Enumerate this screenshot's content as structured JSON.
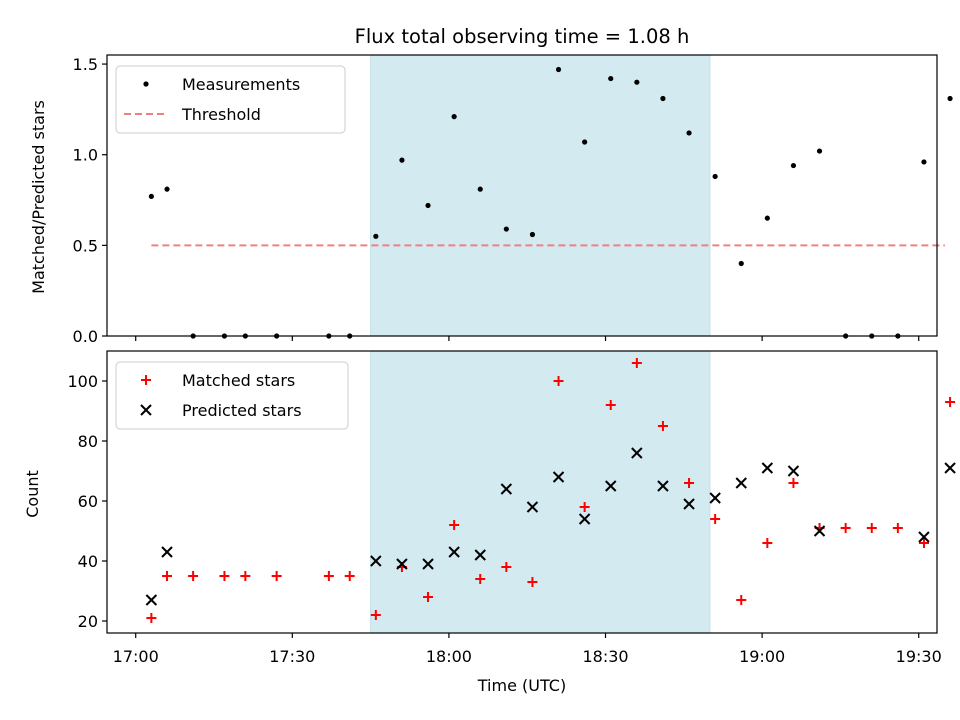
{
  "chart_data": {
    "title": "Flux total observing time = 1.08 h",
    "xlabel": "Time (UTC)",
    "x_ticks": [
      "17:00",
      "17:30",
      "18:00",
      "18:30",
      "19:00",
      "19:30"
    ],
    "x_tick_minutes": [
      0,
      30,
      60,
      90,
      120,
      150
    ],
    "x_range_minutes": [
      -5.5,
      153.5
    ],
    "highlight_span": {
      "start": "17:45",
      "end": "18:50",
      "color": "#d3eaf0"
    },
    "colors": {
      "measurement": "#000000",
      "threshold": "#f08080",
      "matched": "#ff0000",
      "predicted": "#000000"
    },
    "panels": [
      {
        "type": "scatter",
        "ylabel": "Matched/Predicted stars",
        "ylim": [
          0,
          1.55
        ],
        "y_ticks": [
          0.0,
          0.5,
          1.0,
          1.5
        ],
        "y_tick_labels": [
          "0.0",
          "0.5",
          "1.0",
          "1.5"
        ],
        "legend": {
          "position": "top-left",
          "entries": [
            "Measurements",
            "Threshold"
          ]
        },
        "threshold": {
          "name": "Threshold",
          "value": 0.5,
          "x_start": "17:03",
          "x_end": "19:35"
        },
        "series": [
          {
            "name": "Measurements",
            "marker": "dot",
            "x": [
              "17:03",
              "17:06",
              "17:11",
              "17:17",
              "17:21",
              "17:27",
              "17:37",
              "17:41",
              "17:46",
              "17:51",
              "17:56",
              "18:01",
              "18:06",
              "18:11",
              "18:16",
              "18:21",
              "18:26",
              "18:31",
              "18:36",
              "18:41",
              "18:46",
              "18:51",
              "18:56",
              "19:01",
              "19:06",
              "19:11",
              "19:16",
              "19:21",
              "19:26",
              "19:31",
              "19:36"
            ],
            "y": [
              0.77,
              0.81,
              0.0,
              0.0,
              0.0,
              0.0,
              0.0,
              0.0,
              0.55,
              0.97,
              0.72,
              1.21,
              0.81,
              0.59,
              0.56,
              1.47,
              1.07,
              1.42,
              1.4,
              1.31,
              1.12,
              0.88,
              0.4,
              0.65,
              0.94,
              1.02,
              0.0,
              0.0,
              0.0,
              0.96,
              1.31
            ]
          }
        ]
      },
      {
        "type": "scatter",
        "ylabel": "Count",
        "ylim": [
          16,
          110
        ],
        "y_ticks": [
          20,
          40,
          60,
          80,
          100
        ],
        "y_tick_labels": [
          "20",
          "40",
          "60",
          "80",
          "100"
        ],
        "legend": {
          "position": "top-left",
          "entries": [
            "Matched stars",
            "Predicted stars"
          ]
        },
        "series": [
          {
            "name": "Matched stars",
            "marker": "plus",
            "x": [
              "17:03",
              "17:06",
              "17:11",
              "17:17",
              "17:21",
              "17:27",
              "17:37",
              "17:41",
              "17:46",
              "17:51",
              "17:56",
              "18:01",
              "18:06",
              "18:11",
              "18:16",
              "18:21",
              "18:26",
              "18:31",
              "18:36",
              "18:41",
              "18:46",
              "18:51",
              "18:56",
              "19:01",
              "19:06",
              "19:11",
              "19:16",
              "19:21",
              "19:26",
              "19:31",
              "19:36"
            ],
            "y": [
              21,
              35,
              35,
              35,
              35,
              35,
              35,
              35,
              22,
              38,
              28,
              52,
              34,
              38,
              33,
              100,
              58,
              92,
              106,
              85,
              66,
              54,
              27,
              46,
              66,
              51,
              51,
              51,
              51,
              46,
              93
            ]
          },
          {
            "name": "Predicted stars",
            "marker": "x",
            "x": [
              "17:03",
              "17:06",
              "17:46",
              "17:51",
              "17:56",
              "18:01",
              "18:06",
              "18:11",
              "18:16",
              "18:21",
              "18:26",
              "18:31",
              "18:36",
              "18:41",
              "18:46",
              "18:51",
              "18:56",
              "19:01",
              "19:06",
              "19:11",
              "19:31",
              "19:36"
            ],
            "y": [
              27,
              43,
              40,
              39,
              39,
              43,
              42,
              64,
              58,
              68,
              54,
              65,
              76,
              65,
              59,
              61,
              66,
              71,
              70,
              50,
              48,
              71
            ]
          }
        ]
      }
    ]
  }
}
